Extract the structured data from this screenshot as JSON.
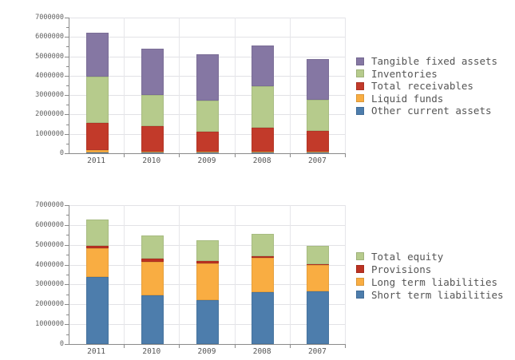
{
  "page": {
    "background": "#ffffff",
    "text_color": "#555555",
    "axis_color": "#8a8a8a",
    "grid_color": "#e2e2e6"
  },
  "chart_data": [
    {
      "type": "bar",
      "stacked": true,
      "title": "",
      "xlabel": "",
      "ylabel": "",
      "categories": [
        "2011",
        "2010",
        "2009",
        "2008",
        "2007"
      ],
      "ylim": [
        0,
        7000000
      ],
      "y_tick_step": 1000000,
      "y_minor_tick_step": 500000,
      "y_tick_labels": [
        "0",
        "1000000",
        "2000000",
        "3000000",
        "4000000",
        "5000000",
        "6000000",
        "7000000"
      ],
      "grid": true,
      "legend_position": "right",
      "legend_order": [
        "Tangible fixed assets",
        "Inventories",
        "Total receivables",
        "Liquid funds",
        "Other current assets"
      ],
      "series": [
        {
          "name": "Other current assets",
          "color": "#4d7dac",
          "values": [
            60000,
            60000,
            50000,
            60000,
            50000
          ]
        },
        {
          "name": "Liquid funds",
          "color": "#f9ad42",
          "values": [
            100000,
            30000,
            20000,
            20000,
            20000
          ]
        },
        {
          "name": "Total receivables",
          "color": "#c23a2a",
          "values": [
            1400000,
            1310000,
            1030000,
            1250000,
            1080000
          ]
        },
        {
          "name": "Inventories",
          "color": "#b6cb8c",
          "values": [
            2380000,
            1600000,
            1630000,
            2120000,
            1600000
          ]
        },
        {
          "name": "Tangible fixed assets",
          "color": "#8577a3",
          "values": [
            2280000,
            2400000,
            2390000,
            2120000,
            2100000
          ]
        }
      ]
    },
    {
      "type": "bar",
      "stacked": true,
      "title": "",
      "xlabel": "",
      "ylabel": "",
      "categories": [
        "2011",
        "2010",
        "2009",
        "2008",
        "2007"
      ],
      "ylim": [
        0,
        7000000
      ],
      "y_tick_step": 1000000,
      "y_minor_tick_step": 500000,
      "y_tick_labels": [
        "0",
        "1000000",
        "2000000",
        "3000000",
        "4000000",
        "5000000",
        "6000000",
        "7000000"
      ],
      "grid": true,
      "legend_position": "right",
      "legend_order": [
        "Total equity",
        "Provisions",
        "Long term liabilities",
        "Short term liabilities"
      ],
      "series": [
        {
          "name": "Short term liabilities",
          "color": "#4d7dac",
          "values": [
            3400000,
            2460000,
            2220000,
            2600000,
            2660000
          ]
        },
        {
          "name": "Long term liabilities",
          "color": "#f9ad42",
          "values": [
            1420000,
            1690000,
            1840000,
            1730000,
            1340000
          ]
        },
        {
          "name": "Provisions",
          "color": "#bc3222",
          "values": [
            140000,
            150000,
            120000,
            110000,
            40000
          ]
        },
        {
          "name": "Total equity",
          "color": "#b6cb8c",
          "values": [
            1320000,
            1170000,
            1040000,
            1110000,
            900000
          ]
        }
      ]
    }
  ]
}
